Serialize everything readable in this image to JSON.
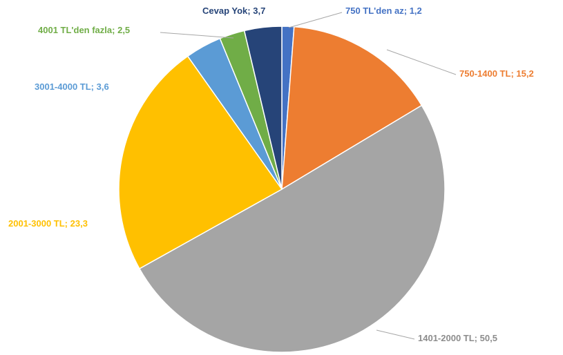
{
  "chart_data": {
    "type": "pie",
    "categories": [
      "750 TL'den az",
      "750-1400 TL",
      "1401-2000 TL",
      "2001-3000 TL",
      "3001-4000 TL",
      "4001 TL'den fazla",
      "Cevap Yok"
    ],
    "values": [
      1.2,
      15.2,
      50.5,
      23.3,
      3.6,
      2.5,
      3.7
    ],
    "value_labels": [
      "1,2",
      "15,2",
      "50,5",
      "23,3",
      "3,6",
      "2,5",
      "3,7"
    ],
    "label_separator": "; ",
    "colors": [
      "#4472c4",
      "#ed7d31",
      "#a5a5a5",
      "#ffc000",
      "#5b9bd5",
      "#70ad47",
      "#264478"
    ],
    "label_colors": [
      "#4472c4",
      "#ed7d31",
      "#8c8c8c",
      "#ffc000",
      "#5b9bd5",
      "#70ad47",
      "#264478"
    ]
  }
}
